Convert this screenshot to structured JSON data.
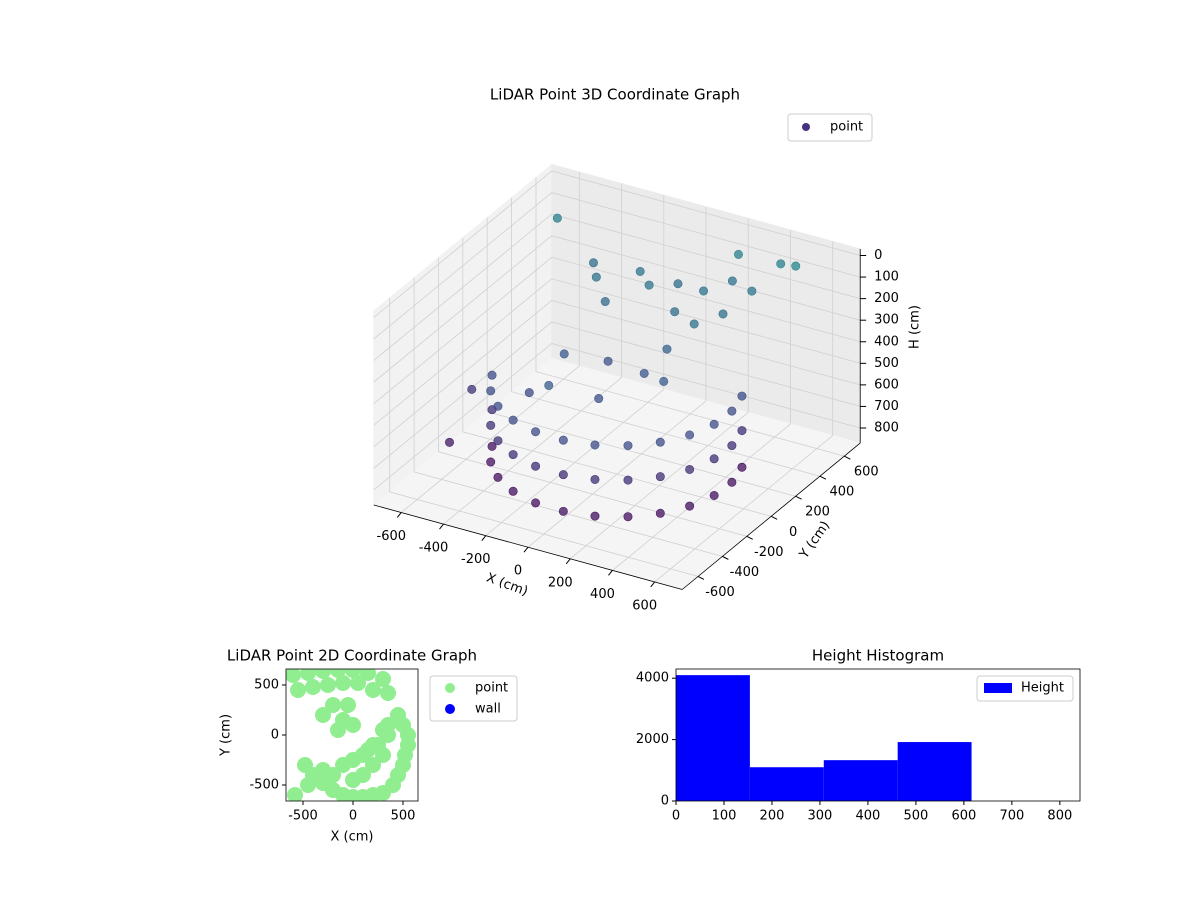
{
  "chart_data": [
    {
      "type": "scatter3d",
      "title": "LiDAR Point 3D Coordinate Graph",
      "xlabel": "X (cm)",
      "ylabel": "Y (cm)",
      "zlabel": "H (cm)",
      "xlim": [
        -730,
        730
      ],
      "ylim": [
        -730,
        730
      ],
      "zlim": [
        -30,
        870
      ],
      "z_inverted": true,
      "xticks": [
        -600,
        -400,
        -200,
        0,
        200,
        400,
        600
      ],
      "yticks": [
        -600,
        -400,
        -200,
        0,
        200,
        400,
        600
      ],
      "zticks": [
        0,
        100,
        200,
        300,
        400,
        500,
        600,
        700,
        800
      ],
      "grid": true,
      "legend": "upper right",
      "colormap": [
        "#440154",
        "#3b528b",
        "#21918c"
      ],
      "series": [
        {
          "name": "point",
          "color": "#46327e",
          "x": [
            -489,
            -489,
            -489,
            -426,
            -426,
            -426,
            -334,
            -334,
            -334,
            -220,
            -220,
            -220,
            -90,
            -90,
            -90,
            45,
            45,
            45,
            178,
            178,
            178,
            298,
            298,
            298,
            398,
            398,
            398,
            471,
            471,
            471,
            512,
            512,
            512,
            518,
            518,
            518,
            489,
            489,
            489,
            -300,
            -150,
            0,
            150,
            300,
            -200,
            100,
            250,
            -50,
            350,
            -400,
            200,
            -100,
            100,
            -250,
            250,
            0,
            -300,
            150,
            -150,
            -600,
            500,
            -630,
            -620,
            200,
            400
          ],
          "y": [
            -178,
            -178,
            -178,
            -298,
            -298,
            -298,
            -398,
            -398,
            -398,
            -471,
            -471,
            -471,
            -512,
            -512,
            -512,
            -518,
            -518,
            -518,
            -489,
            -489,
            -489,
            -426,
            -426,
            -426,
            -334,
            -334,
            -334,
            -220,
            -220,
            -220,
            -90,
            -90,
            -90,
            45,
            45,
            45,
            178,
            178,
            178,
            350,
            450,
            500,
            450,
            350,
            250,
            300,
            200,
            350,
            500,
            500,
            600,
            100,
            50,
            0,
            -50,
            -150,
            -200,
            150,
            -300,
            550,
            600,
            -100,
            -300,
            650,
            650
          ],
          "z": [
            460,
            620,
            790,
            460,
            620,
            790,
            460,
            620,
            790,
            460,
            620,
            790,
            460,
            620,
            790,
            460,
            620,
            790,
            460,
            620,
            790,
            460,
            620,
            790,
            460,
            620,
            790,
            460,
            620,
            790,
            460,
            620,
            790,
            460,
            620,
            790,
            460,
            620,
            790,
            200,
            180,
            220,
            190,
            210,
            240,
            230,
            200,
            170,
            160,
            230,
            200,
            420,
            400,
            380,
            350,
            450,
            480,
            320,
            360,
            100,
            50,
            600,
            750,
            100,
            90
          ]
        }
      ]
    },
    {
      "type": "scatter",
      "title": "LiDAR Point 2D Coordinate Graph",
      "xlabel": "X (cm)",
      "ylabel": "Y (cm)",
      "xlim": [
        -670,
        650
      ],
      "ylim": [
        -660,
        660
      ],
      "xticks": [
        -500,
        0,
        500
      ],
      "yticks": [
        -500,
        0,
        500
      ],
      "legend": "outside upper right",
      "series": [
        {
          "name": "point",
          "color": "#90ee90",
          "x": [
            -600,
            -450,
            -300,
            -150,
            0,
            150,
            300,
            -550,
            -400,
            -250,
            -100,
            50,
            200,
            350,
            -200,
            -50,
            -300,
            -100,
            0,
            -150,
            450,
            500,
            550,
            550,
            520,
            500,
            450,
            400,
            300,
            200,
            100,
            0,
            -100,
            -200,
            -300,
            -400,
            -480,
            350,
            300,
            200,
            100,
            0,
            -200,
            350,
            250,
            150,
            -100,
            0,
            100,
            200,
            300,
            -300,
            -450,
            -580
          ],
          "y": [
            600,
            620,
            640,
            650,
            650,
            620,
            560,
            450,
            480,
            500,
            520,
            520,
            450,
            420,
            300,
            300,
            200,
            150,
            100,
            50,
            200,
            100,
            0,
            -100,
            -200,
            -300,
            -400,
            -500,
            -580,
            -600,
            -620,
            -620,
            -600,
            -550,
            -480,
            -400,
            -300,
            0,
            -200,
            -300,
            -400,
            -450,
            -400,
            100,
            -100,
            -150,
            -300,
            -250,
            -200,
            -100,
            50,
            -350,
            -500,
            -600
          ]
        },
        {
          "name": "wall",
          "color": "#0000ff",
          "x": [],
          "y": []
        }
      ]
    },
    {
      "type": "histogram",
      "title": "Height Histogram",
      "label": "Height",
      "color": "#0000ff",
      "bins": [
        0,
        154,
        308,
        462,
        616,
        770
      ],
      "values": [
        4100,
        1100,
        1330,
        1920,
        0
      ],
      "xlim": [
        0,
        842
      ],
      "ylim": [
        0,
        4300
      ],
      "xticks": [
        0,
        100,
        200,
        300,
        400,
        500,
        600,
        700,
        800
      ],
      "yticks": [
        0,
        2000,
        4000
      ],
      "legend": "upper right"
    }
  ]
}
